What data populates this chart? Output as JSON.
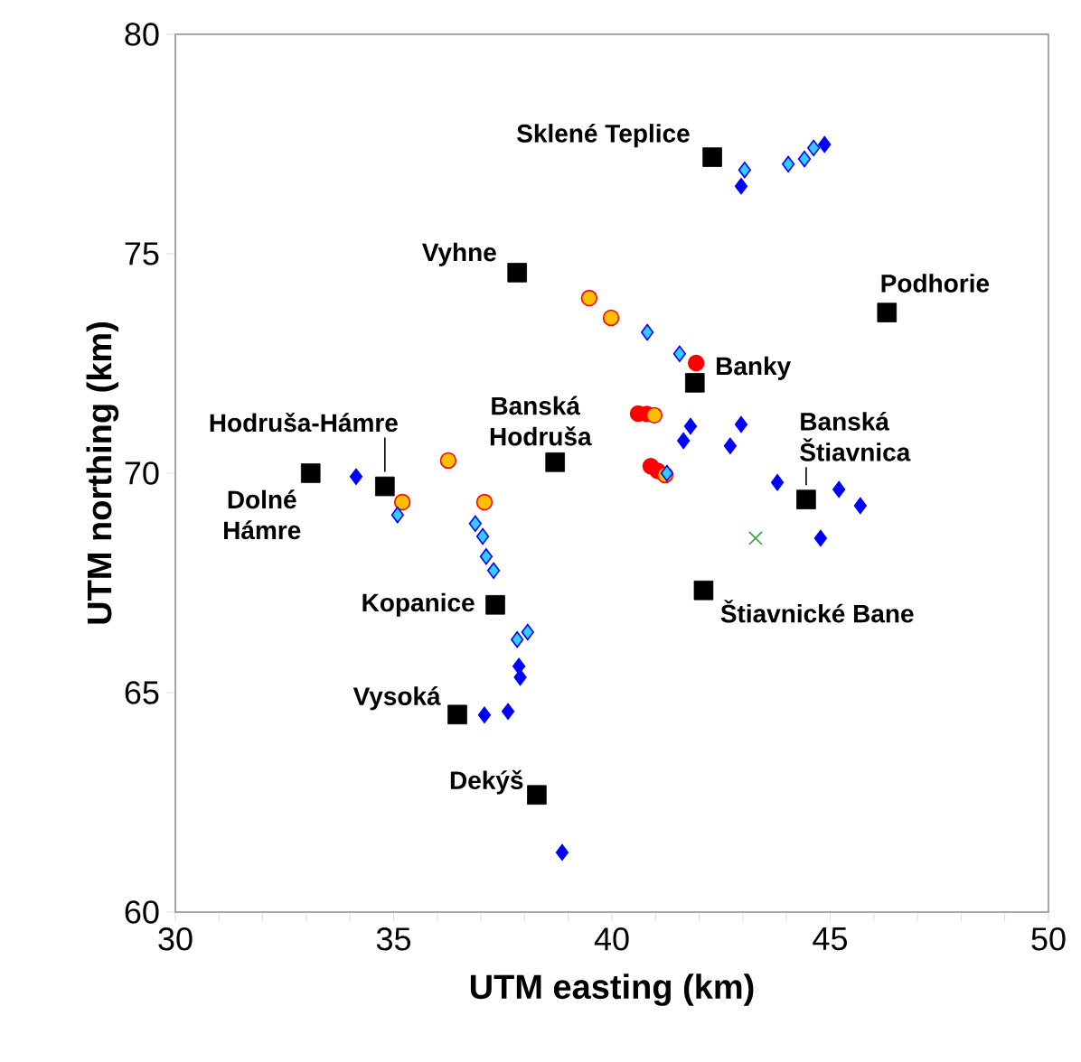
{
  "chart_data": {
    "type": "scatter",
    "xlabel": "UTM easting (km)",
    "ylabel": "UTM northing (km)",
    "xlim": [
      30,
      50
    ],
    "ylim": [
      60,
      80
    ],
    "xticks": [
      30,
      {
        "value": 31,
        "label": null
      },
      {
        "value": 32,
        "label": null
      },
      {
        "value": 33,
        "label": null
      },
      {
        "value": 34,
        "label": null
      },
      35,
      {
        "value": 36,
        "label": null
      },
      {
        "value": 37,
        "label": null
      },
      {
        "value": 38,
        "label": null
      },
      {
        "value": 39,
        "label": null
      },
      40,
      {
        "value": 41,
        "label": null
      },
      {
        "value": 42,
        "label": null
      },
      {
        "value": 43,
        "label": null
      },
      {
        "value": 44,
        "label": null
      },
      45,
      {
        "value": 46,
        "label": null
      },
      {
        "value": 47,
        "label": null
      },
      {
        "value": 48,
        "label": null
      },
      {
        "value": 49,
        "label": null
      },
      50
    ],
    "yticks": [
      60,
      65,
      70,
      75,
      80
    ],
    "series": [
      {
        "color": "#ff0000",
        "marker": "circle",
        "x": [
          41.93,
          40.6,
          40.8,
          40.89,
          41.05
        ],
        "values": [
          72.51,
          71.36,
          71.35,
          70.16,
          70.05
        ]
      },
      {
        "color": "#ffc000",
        "marker": "circle",
        "x": [
          39.48,
          39.98,
          36.25,
          35.2,
          37.08,
          40.97,
          41.22
        ],
        "values": [
          73.99,
          73.54,
          70.29,
          69.34,
          69.34,
          71.32,
          69.96
        ]
      },
      {
        "color": "#0000ff",
        "marker": "diamond",
        "x": [
          42.96,
          44.87,
          34.14,
          41.8,
          41.64,
          42.96,
          42.71,
          43.79,
          45.2,
          45.69,
          44.78,
          37.87,
          37.9,
          37.08,
          37.62,
          38.86
        ],
        "values": [
          76.54,
          77.49,
          69.92,
          71.07,
          70.74,
          71.11,
          70.62,
          69.79,
          69.63,
          69.26,
          68.52,
          65.6,
          65.35,
          64.49,
          64.57,
          61.36
        ]
      },
      {
        "color": "#33ccff",
        "marker": "diamond",
        "x": [
          43.04,
          44.04,
          44.41,
          44.62,
          40.81,
          41.55,
          41.26,
          35.09,
          36.87,
          37.04,
          37.12,
          37.29,
          38.07,
          37.83
        ],
        "values": [
          76.91,
          77.04,
          77.16,
          77.41,
          73.21,
          72.72,
          70.0,
          69.05,
          68.85,
          68.56,
          68.1,
          67.78,
          66.38,
          66.21
        ]
      },
      {
        "color": "#33aa33",
        "marker": "cross",
        "x": [
          43.29
        ],
        "values": [
          68.52
        ]
      },
      {
        "color": "#000000",
        "marker": "square",
        "x": [
          42.3,
          37.83,
          46.3,
          41.9,
          38.7,
          34.8,
          33.1,
          44.45,
          42.1,
          37.33,
          36.46,
          38.28
        ],
        "values": [
          77.2,
          74.57,
          73.66,
          72.06,
          70.25,
          69.7,
          70.0,
          69.4,
          67.33,
          67.0,
          64.5,
          62.67
        ]
      }
    ],
    "annotations": [
      {
        "text": "Sklené Teplice",
        "x": 42.3,
        "y": 77.2
      },
      {
        "text": "Vyhne",
        "x": 37.83,
        "y": 74.57
      },
      {
        "text": "Podhorie",
        "x": 46.3,
        "y": 73.66
      },
      {
        "text": "Banky",
        "x": 41.9,
        "y": 72.06
      },
      {
        "text": "Banská Hodruša",
        "x": 38.7,
        "y": 70.25
      },
      {
        "text": "Hodruša-Hámre",
        "x": 34.8,
        "y": 69.7
      },
      {
        "text": "Dolné Hámre",
        "x": 33.1,
        "y": 70.0
      },
      {
        "text": "Banská Štiavnica",
        "x": 44.45,
        "y": 69.4
      },
      {
        "text": "Štiavnické Bane",
        "x": 42.1,
        "y": 67.33
      },
      {
        "text": "Kopanice",
        "x": 37.33,
        "y": 67.0
      },
      {
        "text": "Vysoká",
        "x": 36.46,
        "y": 64.5
      },
      {
        "text": "Dekýš",
        "x": 38.28,
        "y": 62.67
      }
    ]
  }
}
